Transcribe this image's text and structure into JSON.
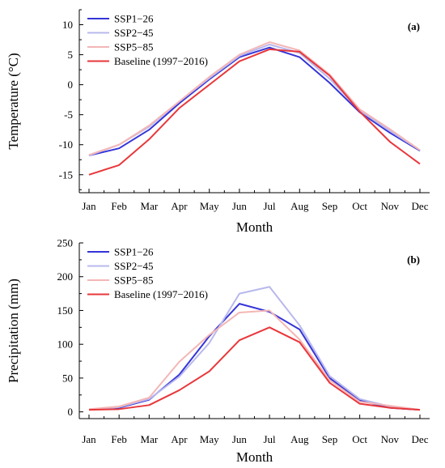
{
  "chart_data": [
    {
      "type": "line",
      "panel_label": "(a)",
      "xlabel": "Month",
      "ylabel": "Temperature (°C)",
      "ylim": [
        -18,
        12.5
      ],
      "yticks": [
        -15,
        -10,
        -5,
        0,
        5,
        10
      ],
      "categories": [
        "Jan",
        "Feb",
        "Mar",
        "Apr",
        "May",
        "Jun",
        "Jul",
        "Aug",
        "Sep",
        "Oct",
        "Nov",
        "Dec"
      ],
      "legend_position": "top-left",
      "series": [
        {
          "name": "SSP1−26",
          "color": "#3535d8",
          "values": [
            -11.8,
            -10.6,
            -7.5,
            -3.1,
            0.9,
            4.6,
            6.2,
            4.6,
            0.3,
            -4.6,
            -8.0,
            -11.0
          ]
        },
        {
          "name": "SSP2−45",
          "color": "#b8b8ee",
          "values": [
            -11.8,
            -10.0,
            -7.0,
            -2.8,
            1.1,
            4.8,
            6.7,
            5.3,
            1.0,
            -4.3,
            -7.7,
            -10.9
          ]
        },
        {
          "name": "SSP5−85",
          "color": "#f4b6b6",
          "values": [
            -11.7,
            -10.0,
            -6.8,
            -2.8,
            1.3,
            5.0,
            7.1,
            5.7,
            1.7,
            -4.1,
            -7.4,
            -10.9
          ]
        },
        {
          "name": "Baseline (1997−2016)",
          "color": "#e8373b",
          "values": [
            -15.0,
            -13.4,
            -9.1,
            -3.9,
            0.0,
            3.9,
            5.9,
            5.5,
            1.5,
            -4.5,
            -9.5,
            -13.2
          ]
        }
      ]
    },
    {
      "type": "line",
      "panel_label": "(b)",
      "xlabel": "Month",
      "ylabel": "Precipitation (mm)",
      "ylim": [
        -10,
        250
      ],
      "yticks": [
        0,
        50,
        100,
        150,
        200,
        250
      ],
      "categories": [
        "Jan",
        "Feb",
        "Mar",
        "Apr",
        "May",
        "Jun",
        "Jul",
        "Aug",
        "Sep",
        "Oct",
        "Nov",
        "Dec"
      ],
      "legend_position": "top-left",
      "series": [
        {
          "name": "SSP1−26",
          "color": "#3535d8",
          "values": [
            3,
            6,
            18,
            55,
            112,
            160,
            148,
            122,
            50,
            17,
            6,
            3
          ]
        },
        {
          "name": "SSP2−45",
          "color": "#b8b8ee",
          "values": [
            3,
            7,
            19,
            52,
            102,
            175,
            185,
            128,
            53,
            19,
            8,
            3
          ]
        },
        {
          "name": "SSP5−85",
          "color": "#f4b6b6",
          "values": [
            4,
            8,
            21,
            74,
            114,
            147,
            150,
            107,
            47,
            15,
            9,
            3
          ]
        },
        {
          "name": "Baseline (1997−2016)",
          "color": "#e8373b",
          "values": [
            3,
            4,
            10,
            32,
            60,
            106,
            125,
            103,
            43,
            12,
            6,
            3
          ]
        }
      ]
    }
  ]
}
